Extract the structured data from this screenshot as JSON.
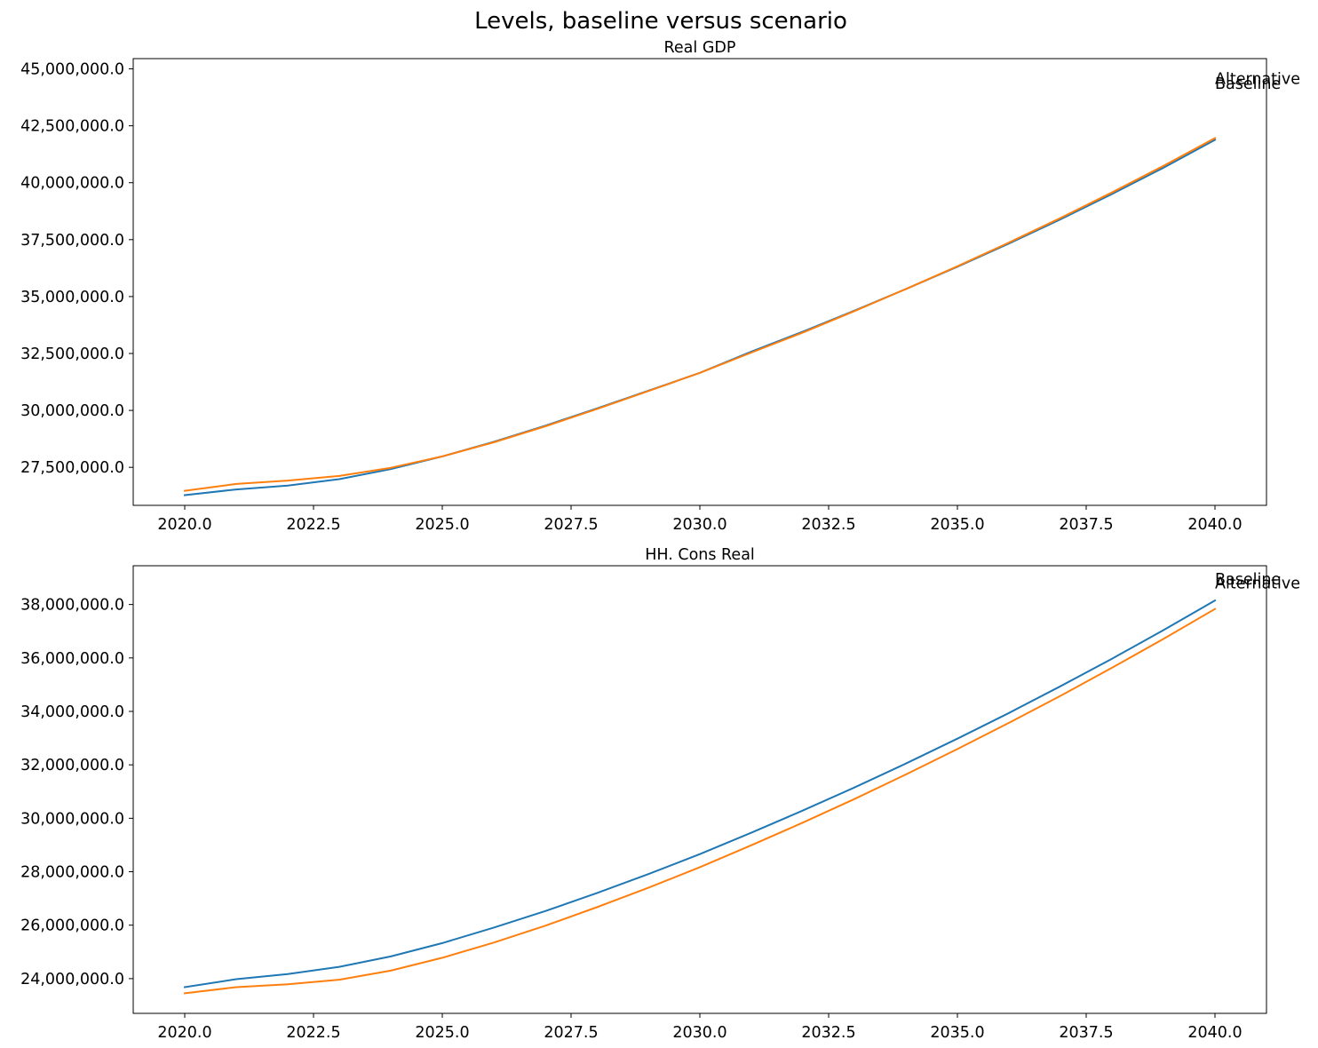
{
  "figure": {
    "title": "Levels, baseline versus scenario"
  },
  "colors": {
    "baseline": "#1f77b4",
    "alternative": "#ff7f0e"
  },
  "chart_data": [
    {
      "type": "line",
      "title": "Real GDP",
      "xlabel": "",
      "ylabel": "",
      "grid": false,
      "xlim": [
        2019,
        2041
      ],
      "ylim": [
        25830000,
        45450000
      ],
      "x_ticks": [
        2020.0,
        2022.5,
        2025.0,
        2027.5,
        2030.0,
        2032.5,
        2035.0,
        2037.5,
        2040.0
      ],
      "x_tick_labels": [
        "2020.0",
        "2022.5",
        "2025.0",
        "2027.5",
        "2030.0",
        "2032.5",
        "2035.0",
        "2037.5",
        "2040.0"
      ],
      "y_ticks": [
        27500000,
        30000000,
        32500000,
        35000000,
        37500000,
        40000000,
        42500000,
        45000000
      ],
      "y_tick_labels": [
        "27,500,000.0",
        "30,000,000.0",
        "32,500,000.0",
        "35,000,000.0",
        "37,500,000.0",
        "40,000,000.0",
        "42,500,000.0",
        "45,000,000.0"
      ],
      "x": [
        2020,
        2021,
        2022,
        2023,
        2024,
        2025,
        2026,
        2027,
        2028,
        2029,
        2030,
        2031,
        2032,
        2033,
        2034,
        2035,
        2036,
        2037,
        2038,
        2039,
        2040
      ],
      "series": [
        {
          "name": "Baseline",
          "color": "#1f77b4",
          "values": [
            26280000,
            26530000,
            26700000,
            26980000,
            27420000,
            27980000,
            28620000,
            29330000,
            30080000,
            30860000,
            31650000,
            32580000,
            33460000,
            34380000,
            35330000,
            36310000,
            37330000,
            38390000,
            39500000,
            40660000,
            41880000
          ]
        },
        {
          "name": "Alternative",
          "color": "#ff7f0e",
          "values": [
            26470000,
            26770000,
            26920000,
            27120000,
            27480000,
            27980000,
            28600000,
            29300000,
            30060000,
            30850000,
            31650000,
            32540000,
            33420000,
            34360000,
            35330000,
            36330000,
            37370000,
            38450000,
            39570000,
            40740000,
            41960000
          ]
        }
      ],
      "end_labels": [
        {
          "text": "Alternative",
          "x": 2040,
          "y": 44330000
        },
        {
          "text": "Baseline",
          "x": 2040,
          "y": 44130000
        }
      ]
    },
    {
      "type": "line",
      "title": "HH. Cons Real",
      "xlabel": "",
      "ylabel": "",
      "grid": false,
      "xlim": [
        2019,
        2041
      ],
      "ylim": [
        22700000,
        39450000
      ],
      "x_ticks": [
        2020.0,
        2022.5,
        2025.0,
        2027.5,
        2030.0,
        2032.5,
        2035.0,
        2037.5,
        2040.0
      ],
      "x_tick_labels": [
        "2020.0",
        "2022.5",
        "2025.0",
        "2027.5",
        "2030.0",
        "2032.5",
        "2035.0",
        "2037.5",
        "2040.0"
      ],
      "y_ticks": [
        24000000,
        26000000,
        28000000,
        30000000,
        32000000,
        34000000,
        36000000,
        38000000
      ],
      "y_tick_labels": [
        "24,000,000.0",
        "26,000,000.0",
        "28,000,000.0",
        "30,000,000.0",
        "32,000,000.0",
        "34,000,000.0",
        "36,000,000.0",
        "38,000,000.0"
      ],
      "x": [
        2020,
        2021,
        2022,
        2023,
        2024,
        2025,
        2026,
        2027,
        2028,
        2029,
        2030,
        2031,
        2032,
        2033,
        2034,
        2035,
        2036,
        2037,
        2038,
        2039,
        2040
      ],
      "series": [
        {
          "name": "Baseline",
          "color": "#1f77b4",
          "values": [
            23680000,
            23980000,
            24170000,
            24440000,
            24830000,
            25330000,
            25910000,
            26530000,
            27200000,
            27910000,
            28660000,
            29460000,
            30290000,
            31150000,
            32050000,
            32980000,
            33940000,
            34940000,
            35970000,
            37040000,
            38150000
          ]
        },
        {
          "name": "Alternative",
          "color": "#ff7f0e",
          "values": [
            23450000,
            23680000,
            23790000,
            23960000,
            24300000,
            24780000,
            25350000,
            25980000,
            26670000,
            27400000,
            28170000,
            28990000,
            29840000,
            30720000,
            31640000,
            32590000,
            33570000,
            34580000,
            35630000,
            36710000,
            37830000
          ]
        }
      ],
      "end_labels": [
        {
          "text": "Baseline",
          "x": 2040,
          "y": 38750000
        },
        {
          "text": "Alternative",
          "x": 2040,
          "y": 38600000
        }
      ]
    }
  ]
}
